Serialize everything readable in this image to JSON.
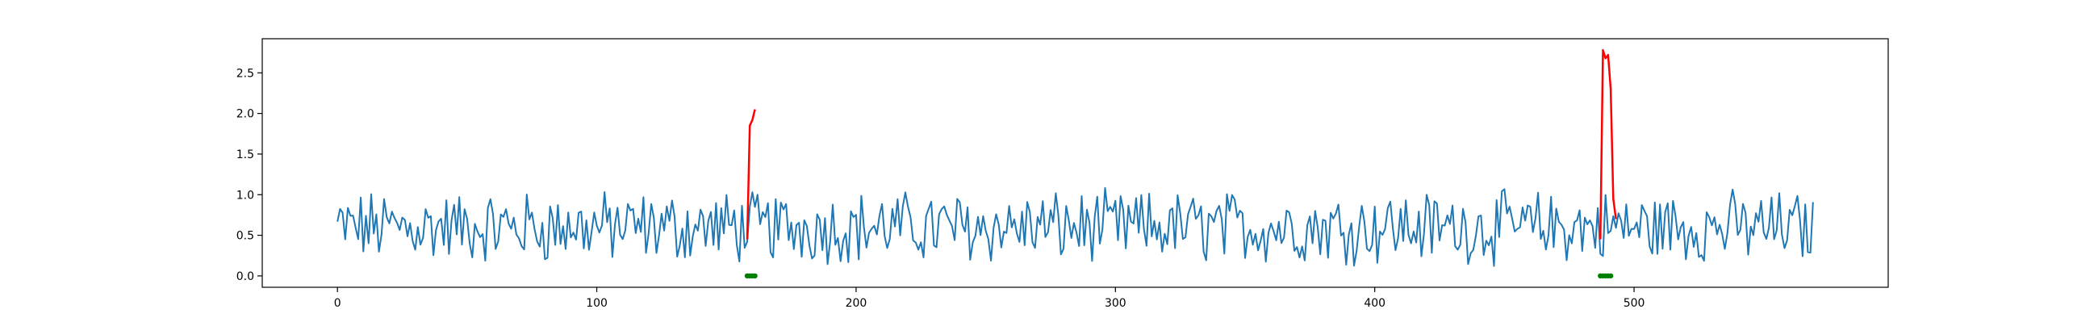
{
  "chart_data": {
    "type": "line",
    "title": "",
    "xlabel": "",
    "ylabel": "",
    "xlim": [
      -29,
      598
    ],
    "ylim": [
      -0.14,
      2.92
    ],
    "xticks": [
      0,
      100,
      200,
      300,
      400,
      500
    ],
    "yticks": [
      0.0,
      0.5,
      1.0,
      1.5,
      2.0,
      2.5
    ],
    "xtick_labels": [
      "0",
      "100",
      "200",
      "300",
      "400",
      "500"
    ],
    "ytick_labels": [
      "0.0",
      "0.5",
      "1.0",
      "1.5",
      "2.0",
      "2.5"
    ],
    "grid": false,
    "legend": "none",
    "colors": {
      "signal": "#1f77b4",
      "anomaly": "#ff0000",
      "marker": "#008000"
    },
    "series": [
      {
        "role": "signal",
        "n": 570,
        "x_start": 0,
        "x_end": 569,
        "baseline_range": [
          0.1,
          1.1
        ]
      },
      {
        "role": "anomaly",
        "x": [
          158,
          159,
          160,
          161
        ],
        "y": [
          0.45,
          1.85,
          1.92,
          2.05
        ]
      },
      {
        "role": "anomaly",
        "x": [
          487,
          488,
          489,
          490,
          491,
          492,
          493
        ],
        "y": [
          0.45,
          2.78,
          2.68,
          2.72,
          2.3,
          0.95,
          0.7
        ]
      },
      {
        "role": "marker",
        "x": [
          158,
          159,
          160,
          161
        ],
        "y": [
          0.0,
          0.0,
          0.0,
          0.0
        ]
      },
      {
        "role": "marker",
        "x": [
          487,
          488,
          489,
          490,
          491
        ],
        "y": [
          0.0,
          0.0,
          0.0,
          0.0,
          0.0
        ]
      }
    ]
  }
}
